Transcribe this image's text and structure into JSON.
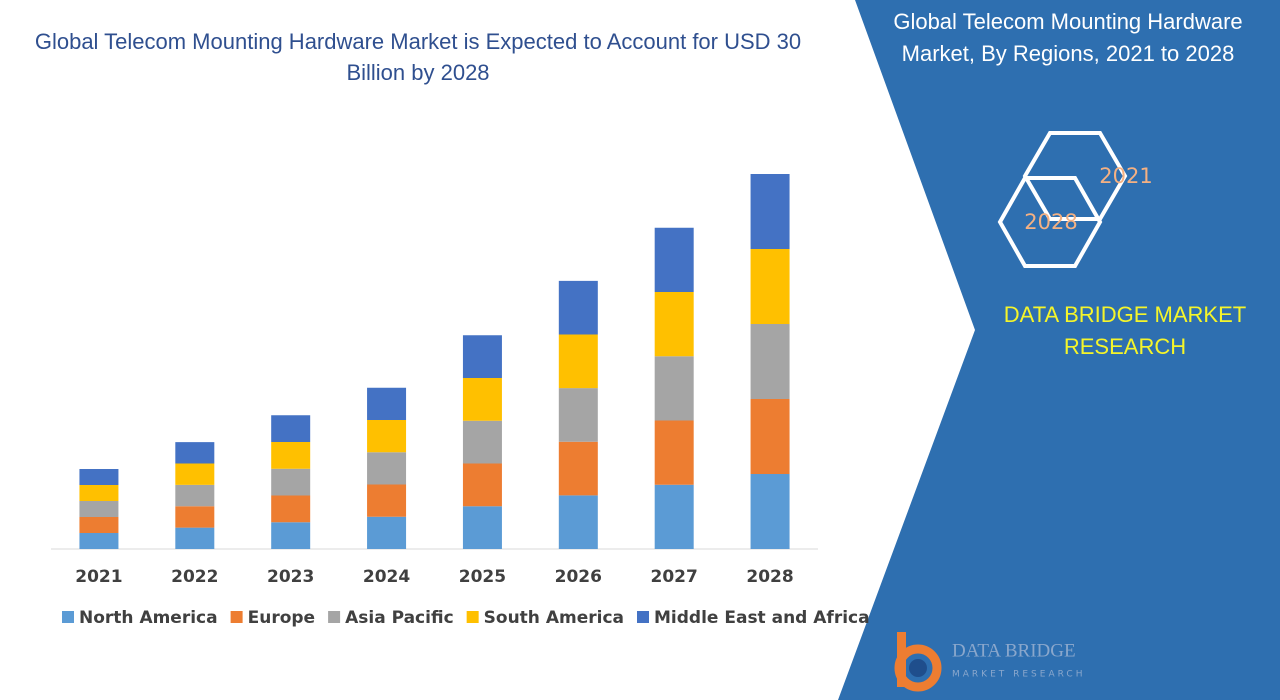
{
  "chart_data": {
    "type": "stacked_bar",
    "title": "Global Telecom Mounting Hardware Market is Expected to Account for USD 30 Billion by 2028",
    "categories": [
      "2021",
      "2022",
      "2023",
      "2024",
      "2025",
      "2026",
      "2027",
      "2028"
    ],
    "series": [
      {
        "name": "North America",
        "color": "#5b9bd5",
        "values": [
          1.28,
          1.71,
          2.14,
          2.58,
          3.42,
          4.29,
          5.14,
          6
        ]
      },
      {
        "name": "Europe",
        "color": "#ed7d31",
        "values": [
          1.28,
          1.71,
          2.14,
          2.58,
          3.42,
          4.29,
          5.14,
          6
        ]
      },
      {
        "name": "Asia Pacific",
        "color": "#a5a5a5",
        "values": [
          1.28,
          1.71,
          2.14,
          2.58,
          3.42,
          4.29,
          5.14,
          6
        ]
      },
      {
        "name": "South America",
        "color": "#ffc000",
        "values": [
          1.28,
          1.71,
          2.14,
          2.58,
          3.42,
          4.29,
          5.14,
          6
        ]
      },
      {
        "name": "Middle East and Africa",
        "color": "#4472c4",
        "values": [
          1.28,
          1.71,
          2.14,
          2.58,
          3.42,
          4.29,
          5.14,
          6
        ]
      }
    ],
    "ylim": [
      0,
      30
    ]
  },
  "side_panel": {
    "title": "Global Telecom Mounting Hardware Market, By Regions, 2021 to 2028",
    "hexagons": [
      "2021",
      "2028"
    ],
    "brand": "DATA BRIDGE MARKET RESEARCH",
    "logo": {
      "name": "DATA BRIDGE",
      "tagline": "MARKET RESEARCH"
    }
  }
}
